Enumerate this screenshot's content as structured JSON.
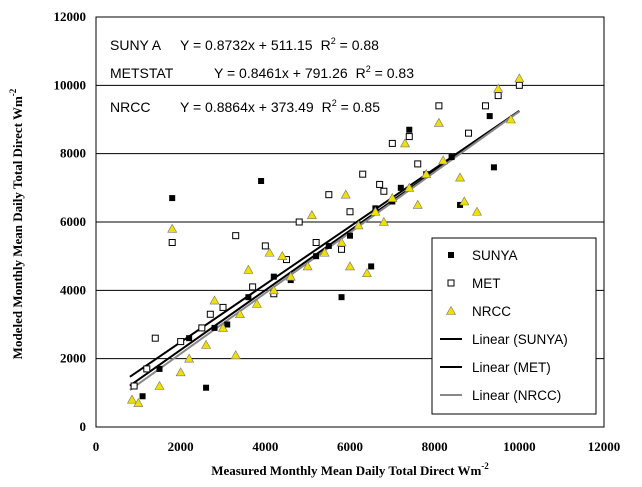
{
  "chart_data": {
    "type": "scatter",
    "xlabel": "Measured Monthly Mean Daily Total Direct Wm",
    "xlabel_sup": "-2",
    "ylabel": "Modeled Monthly Mean Daily Total Direct Wm",
    "ylabel_sup": "-2",
    "xlim": [
      0,
      12000
    ],
    "ylim": [
      0,
      12000
    ],
    "xticks": [
      0,
      2000,
      4000,
      6000,
      8000,
      10000,
      12000
    ],
    "yticks": [
      0,
      2000,
      4000,
      6000,
      8000,
      10000,
      12000
    ],
    "grid": "horizontal",
    "legend_position": "bottom-right",
    "equations": [
      {
        "model": "SUNY A",
        "formula": "Y = 0.8732x + 511.15",
        "r2_label": "R",
        "r2_sup": "2",
        "r2_value": " = 0.88"
      },
      {
        "model": "METSTAT",
        "formula": "Y = 0.8461x + 791.26",
        "r2_label": "R",
        "r2_sup": "2",
        "r2_value": " = 0.83"
      },
      {
        "model": "NRCC",
        "formula": "Y = 0.8864x + 373.49",
        "r2_label": "R",
        "r2_sup": "2",
        "r2_value": " = 0.85"
      }
    ],
    "series": [
      {
        "name": "SUNYA",
        "marker": "filled-square",
        "color": "#000000",
        "points": [
          [
            1800,
            6700
          ],
          [
            3900,
            7200
          ],
          [
            2600,
            1150
          ],
          [
            1100,
            900
          ],
          [
            5800,
            3800
          ],
          [
            9300,
            9100
          ],
          [
            9400,
            7600
          ],
          [
            7400,
            8700
          ],
          [
            6500,
            4700
          ],
          [
            8600,
            6500
          ],
          [
            2200,
            2600
          ],
          [
            3100,
            3000
          ],
          [
            4200,
            4400
          ],
          [
            5200,
            5000
          ],
          [
            6000,
            5600
          ],
          [
            7000,
            6600
          ],
          [
            7800,
            7400
          ],
          [
            8400,
            7900
          ],
          [
            3600,
            3800
          ],
          [
            4600,
            4300
          ],
          [
            5500,
            5300
          ],
          [
            2800,
            2900
          ],
          [
            1500,
            1700
          ],
          [
            6600,
            6400
          ],
          [
            7200,
            7000
          ]
        ]
      },
      {
        "name": "MET",
        "marker": "open-square",
        "color": "#000000",
        "points": [
          [
            1800,
            5400
          ],
          [
            1400,
            2600
          ],
          [
            2500,
            2900
          ],
          [
            3300,
            5600
          ],
          [
            4000,
            5300
          ],
          [
            4800,
            6000
          ],
          [
            5500,
            6800
          ],
          [
            6300,
            7400
          ],
          [
            7000,
            8300
          ],
          [
            7400,
            8500
          ],
          [
            8100,
            9400
          ],
          [
            9200,
            9400
          ],
          [
            9500,
            9700
          ],
          [
            10000,
            10000
          ],
          [
            8800,
            8600
          ],
          [
            3000,
            3500
          ],
          [
            3700,
            4100
          ],
          [
            4500,
            4900
          ],
          [
            5200,
            5400
          ],
          [
            6000,
            6300
          ],
          [
            6800,
            6900
          ],
          [
            7600,
            7700
          ],
          [
            2000,
            2500
          ],
          [
            1200,
            1700
          ],
          [
            900,
            1200
          ],
          [
            2700,
            3300
          ],
          [
            4200,
            3900
          ],
          [
            5800,
            5200
          ],
          [
            6700,
            7100
          ]
        ]
      },
      {
        "name": "NRCC",
        "marker": "yellow-triangle",
        "color": "#f0e000",
        "points": [
          [
            1800,
            5800
          ],
          [
            850,
            800
          ],
          [
            1000,
            700
          ],
          [
            1500,
            1200
          ],
          [
            2200,
            2000
          ],
          [
            2600,
            2400
          ],
          [
            3000,
            2900
          ],
          [
            3400,
            3300
          ],
          [
            3800,
            3600
          ],
          [
            4200,
            4000
          ],
          [
            4600,
            4400
          ],
          [
            5000,
            4700
          ],
          [
            5400,
            5100
          ],
          [
            5800,
            5400
          ],
          [
            6200,
            5900
          ],
          [
            6600,
            6300
          ],
          [
            7000,
            6700
          ],
          [
            7400,
            7000
          ],
          [
            7800,
            7400
          ],
          [
            8200,
            7800
          ],
          [
            8600,
            7300
          ],
          [
            8700,
            6600
          ],
          [
            9000,
            6300
          ],
          [
            9800,
            9000
          ],
          [
            10000,
            10200
          ],
          [
            9500,
            9900
          ],
          [
            7600,
            6500
          ],
          [
            6400,
            4500
          ],
          [
            3300,
            2100
          ],
          [
            2000,
            1600
          ],
          [
            4100,
            5100
          ],
          [
            5100,
            6200
          ],
          [
            5900,
            6800
          ],
          [
            7300,
            8300
          ],
          [
            8100,
            8900
          ],
          [
            2800,
            3700
          ],
          [
            3600,
            4600
          ],
          [
            4400,
            5000
          ],
          [
            6000,
            4700
          ],
          [
            6800,
            6000
          ]
        ]
      }
    ],
    "trendlines": [
      {
        "name": "Linear (SUNYA)",
        "slope": 0.8732,
        "intercept": 511.15,
        "color": "#000000",
        "width": 2
      },
      {
        "name": "Linear (MET)",
        "slope": 0.8461,
        "intercept": 791.26,
        "color": "#000000",
        "width": 2
      },
      {
        "name": "Linear (NRCC)",
        "slope": 0.8864,
        "intercept": 373.49,
        "color": "#888888",
        "width": 2
      }
    ]
  },
  "legend": {
    "items": [
      {
        "label": "SUNYA",
        "kind": "filled-square"
      },
      {
        "label": "MET",
        "kind": "open-square"
      },
      {
        "label": "NRCC",
        "kind": "yellow-triangle"
      },
      {
        "label": "Linear (SUNYA)",
        "kind": "line-black"
      },
      {
        "label": "Linear (MET)",
        "kind": "line-black"
      },
      {
        "label": "Linear (NRCC)",
        "kind": "line-gray"
      }
    ]
  },
  "colors": {
    "grid": "#000000",
    "frame": "#000000",
    "triangle_fill": "#f0e000"
  }
}
